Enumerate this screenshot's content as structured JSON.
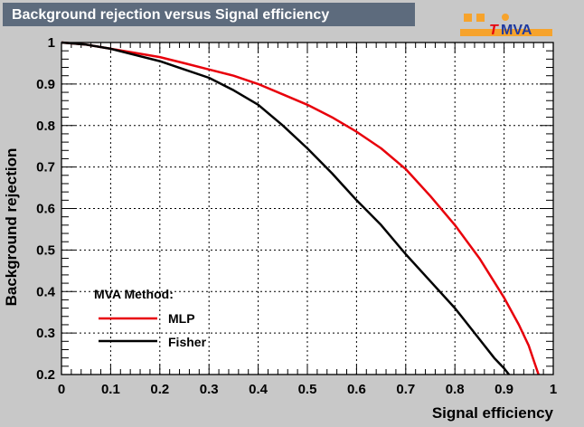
{
  "title": "Background rejection versus Signal efficiency",
  "logo": {
    "t": "T",
    "rest": "MVA"
  },
  "colors": {
    "title_bg": "#5d6b7d",
    "plot_bg": "#ffffff",
    "page_bg": "#c8c8c8",
    "logo_orange": "#f6a32c",
    "logo_red": "#e8000b",
    "logo_blue": "#1e3aa0"
  },
  "legend": {
    "header": "MVA Method:",
    "items": [
      "MLP",
      "Fisher"
    ]
  },
  "chart_data": {
    "type": "line",
    "title": "Background rejection versus Signal efficiency",
    "xlabel": "Signal efficiency",
    "ylabel": "Background rejection",
    "xlim": [
      0,
      1
    ],
    "ylim": [
      0.2,
      1
    ],
    "xticks": [
      "0",
      "0.1",
      "0.2",
      "0.3",
      "0.4",
      "0.5",
      "0.6",
      "0.7",
      "0.8",
      "0.9",
      "1"
    ],
    "yticks": [
      "0.2",
      "0.3",
      "0.4",
      "0.5",
      "0.6",
      "0.7",
      "0.8",
      "0.9",
      "1"
    ],
    "grid": true,
    "legend_position": "bottom-left",
    "series": [
      {
        "name": "MLP",
        "color": "#e8000b",
        "x": [
          0,
          0.05,
          0.1,
          0.15,
          0.2,
          0.25,
          0.3,
          0.35,
          0.4,
          0.45,
          0.5,
          0.55,
          0.6,
          0.65,
          0.7,
          0.75,
          0.8,
          0.85,
          0.9,
          0.93,
          0.95,
          0.96,
          0.97
        ],
        "y": [
          1.0,
          0.995,
          0.985,
          0.975,
          0.965,
          0.95,
          0.935,
          0.92,
          0.9,
          0.875,
          0.85,
          0.82,
          0.785,
          0.745,
          0.695,
          0.63,
          0.56,
          0.48,
          0.385,
          0.32,
          0.27,
          0.235,
          0.2
        ]
      },
      {
        "name": "Fisher",
        "color": "#000000",
        "x": [
          0,
          0.05,
          0.1,
          0.15,
          0.2,
          0.25,
          0.3,
          0.35,
          0.4,
          0.45,
          0.5,
          0.55,
          0.6,
          0.65,
          0.7,
          0.75,
          0.8,
          0.85,
          0.88,
          0.9,
          0.91
        ],
        "y": [
          1.0,
          0.995,
          0.985,
          0.97,
          0.955,
          0.935,
          0.915,
          0.885,
          0.85,
          0.8,
          0.745,
          0.685,
          0.62,
          0.56,
          0.49,
          0.425,
          0.36,
          0.285,
          0.24,
          0.215,
          0.2
        ]
      }
    ]
  }
}
